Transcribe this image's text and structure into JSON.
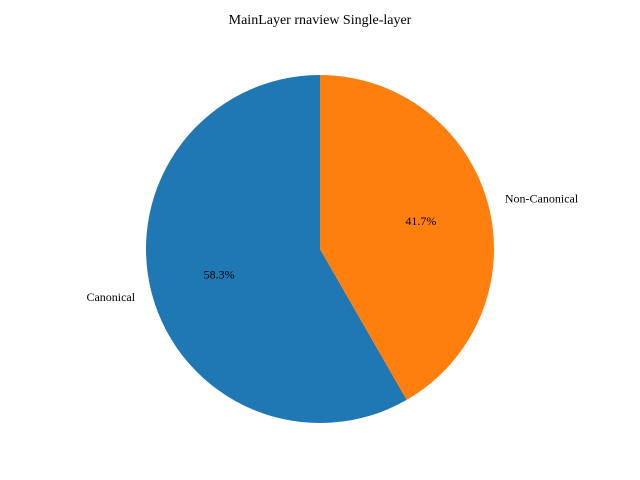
{
  "chart_data": {
    "type": "pie",
    "title": "MainLayer rnaview Single-layer",
    "start_angle_deg": 90,
    "direction": "counterclockwise",
    "slices": [
      {
        "label": "Canonical",
        "value": 58.3,
        "pct_label": "58.3%",
        "color": "#1f77b4"
      },
      {
        "label": "Non-Canonical",
        "value": 41.7,
        "pct_label": "41.7%",
        "color": "#ff7f0e"
      }
    ]
  }
}
